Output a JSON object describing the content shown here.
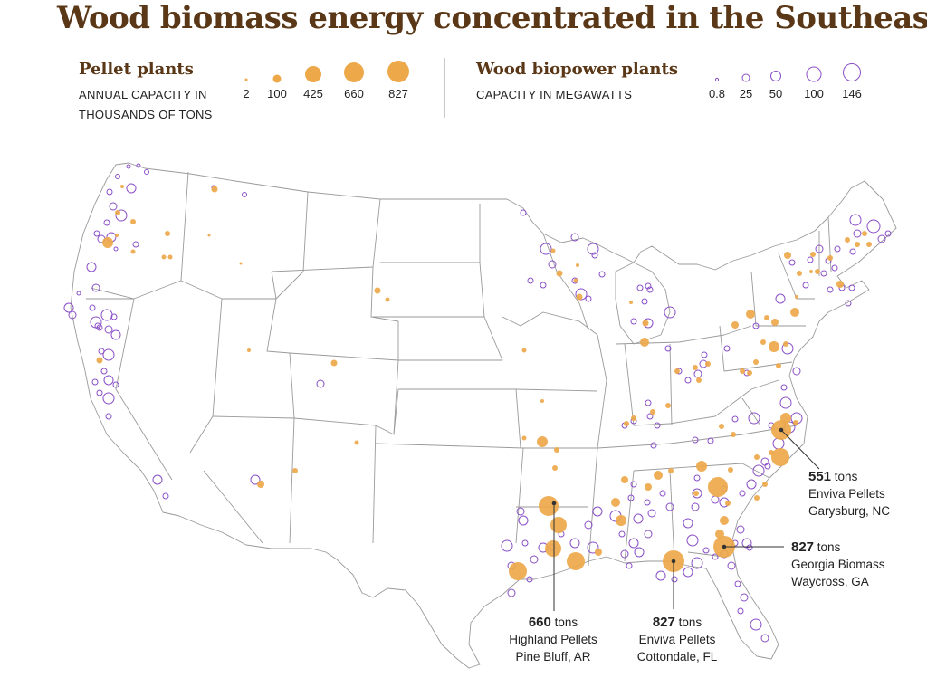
{
  "title": "Wood biomass energy concentrated in the Southeast",
  "legend": {
    "pellet": {
      "title": "Pellet plants",
      "subtitle_line1": "ANNUAL CAPACITY IN",
      "subtitle_line2": "THOUSANDS OF TONS",
      "values": [
        "2",
        "100",
        "425",
        "660",
        "827"
      ],
      "color": "#eda84a"
    },
    "biopower": {
      "title": "Wood biopower plants",
      "subtitle": "CAPACITY IN MEGAWATTS",
      "values": [
        "0.8",
        "25",
        "50",
        "100",
        "146"
      ],
      "color": "#8a4fc7"
    }
  },
  "callouts": [
    {
      "amount": "551",
      "unit": "tons",
      "company": "Enviva Pellets",
      "place": "Garysburg, NC"
    },
    {
      "amount": "827",
      "unit": "tons",
      "company": "Georgia Biomass",
      "place": "Waycross, GA"
    },
    {
      "amount": "660",
      "unit": "tons",
      "company": "Highland Pellets",
      "place": "Pine Bluff, AR"
    },
    {
      "amount": "827",
      "unit": "tons",
      "company": "Enviva Pellets",
      "place": "Cottondale, FL"
    }
  ]
}
